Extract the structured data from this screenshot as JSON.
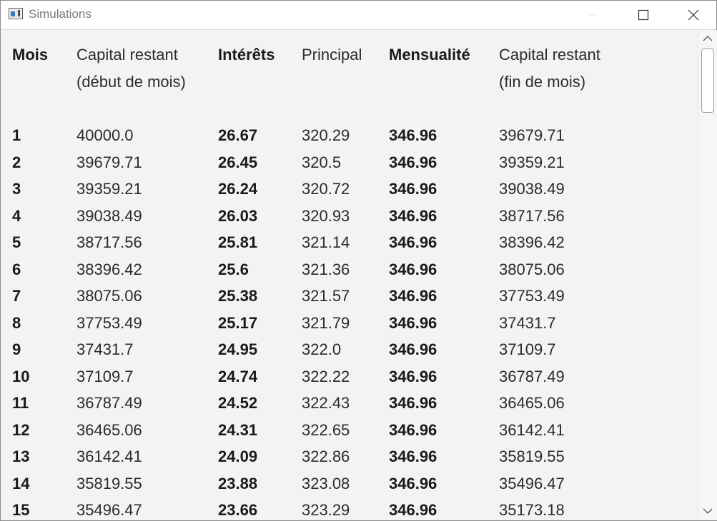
{
  "window": {
    "title": "Simulations",
    "icon": "java-app-icon",
    "controls": [
      "minimize-icon",
      "maximize-icon",
      "close-icon"
    ]
  },
  "table": {
    "headers": [
      {
        "line1": "Mois",
        "line2": "",
        "bold": true
      },
      {
        "line1": "Capital restant",
        "line2": "(début de mois)",
        "bold": false
      },
      {
        "line1": "Intérêts",
        "line2": "",
        "bold": true
      },
      {
        "line1": "Principal",
        "line2": "",
        "bold": false
      },
      {
        "line1": "Mensualité",
        "line2": "",
        "bold": true
      },
      {
        "line1": "Capital restant",
        "line2": "(fin de mois)",
        "bold": false
      }
    ],
    "rows": [
      [
        "1",
        "40000.0",
        "26.67",
        "320.29",
        "346.96",
        "39679.71"
      ],
      [
        "2",
        "39679.71",
        "26.45",
        "320.5",
        "346.96",
        "39359.21"
      ],
      [
        "3",
        "39359.21",
        "26.24",
        "320.72",
        "346.96",
        "39038.49"
      ],
      [
        "4",
        "39038.49",
        "26.03",
        "320.93",
        "346.96",
        "38717.56"
      ],
      [
        "5",
        "38717.56",
        "25.81",
        "321.14",
        "346.96",
        "38396.42"
      ],
      [
        "6",
        "38396.42",
        "25.6",
        "321.36",
        "346.96",
        "38075.06"
      ],
      [
        "7",
        "38075.06",
        "25.38",
        "321.57",
        "346.96",
        "37753.49"
      ],
      [
        "8",
        "37753.49",
        "25.17",
        "321.79",
        "346.96",
        "37431.7"
      ],
      [
        "9",
        "37431.7",
        "24.95",
        "322.0",
        "346.96",
        "37109.7"
      ],
      [
        "10",
        "37109.7",
        "24.74",
        "322.22",
        "346.96",
        "36787.49"
      ],
      [
        "11",
        "36787.49",
        "24.52",
        "322.43",
        "346.96",
        "36465.06"
      ],
      [
        "12",
        "36465.06",
        "24.31",
        "322.65",
        "346.96",
        "36142.41"
      ],
      [
        "13",
        "36142.41",
        "24.09",
        "322.86",
        "346.96",
        "35819.55"
      ],
      [
        "14",
        "35819.55",
        "23.88",
        "323.08",
        "346.96",
        "35496.47"
      ],
      [
        "15",
        "35496.47",
        "23.66",
        "323.29",
        "346.96",
        "35173.18"
      ]
    ]
  },
  "scrollbar": {
    "icons": [
      "scroll-up-icon",
      "scroll-down-icon"
    ]
  }
}
